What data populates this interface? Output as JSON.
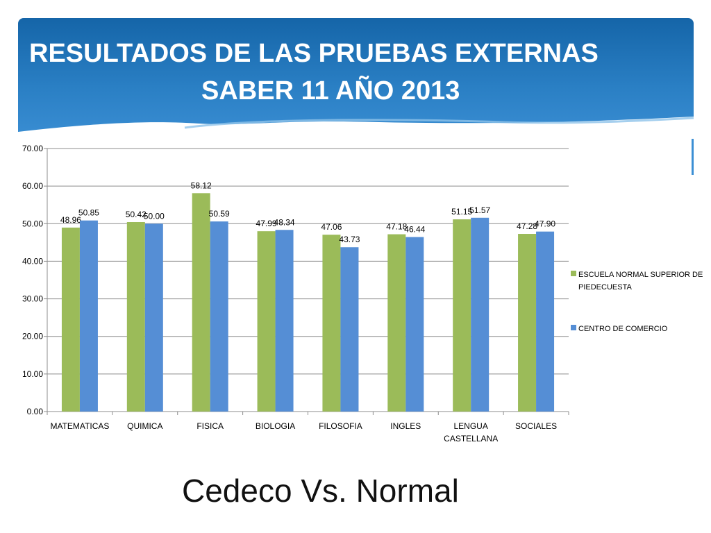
{
  "header": {
    "title_line1": "RESULTADOS DE LAS PRUEBAS EXTERNAS",
    "title_line2": "SABER 11  AÑO 2013"
  },
  "caption": "Cedeco Vs. Normal",
  "colors": {
    "header_top": "#1565a8",
    "header_bottom": "#3b8fd4",
    "series_green": "#9bbb59",
    "series_blue": "#558ed5",
    "gridline": "#808080"
  },
  "chart_data": {
    "type": "bar",
    "title": "",
    "xlabel": "",
    "ylabel": "",
    "ylim": [
      0,
      70
    ],
    "ytick_values": [
      0,
      10,
      20,
      30,
      40,
      50,
      60,
      70
    ],
    "ytick_labels": [
      "0.00",
      "10.00",
      "20.00",
      "30.00",
      "40.00",
      "50.00",
      "60.00",
      "70.00"
    ],
    "grid": true,
    "legend_position": "right",
    "categories": [
      [
        "MATEMATICAS"
      ],
      [
        "QUIMICA"
      ],
      [
        "FISICA"
      ],
      [
        "BIOLOGIA"
      ],
      [
        "FILOSOFIA"
      ],
      [
        "INGLES"
      ],
      [
        "LENGUA",
        "CASTELLANA"
      ],
      [
        "SOCIALES"
      ]
    ],
    "series": [
      {
        "name_lines": [
          "ESCUELA NORMAL SUPERIOR DE",
          "PIEDECUESTA"
        ],
        "color": "#9bbb59",
        "values": [
          48.96,
          50.42,
          58.12,
          47.99,
          47.06,
          47.18,
          51.15,
          47.28
        ],
        "labels": [
          "48.96",
          "50.42",
          "58.12",
          "47.99",
          "47.06",
          "47.18",
          "51.15",
          "47.28"
        ]
      },
      {
        "name_lines": [
          "CENTRO DE COMERCIO"
        ],
        "color": "#558ed5",
        "values": [
          50.85,
          50.0,
          50.59,
          48.34,
          43.73,
          46.44,
          51.57,
          47.9
        ],
        "labels": [
          "50.85",
          "50.00",
          "50.59",
          "48.34",
          "43.73",
          "46.44",
          "51.57",
          "47.90"
        ]
      }
    ]
  }
}
